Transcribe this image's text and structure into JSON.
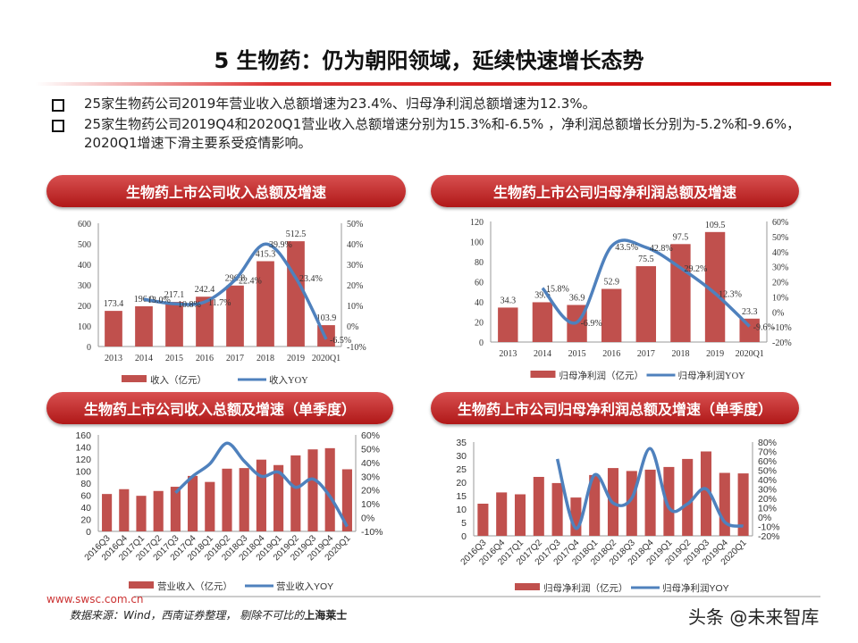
{
  "title": "5 生物药：仍为朝阳领域，延续快速增长态势",
  "bullets": [
    "25家生物药公司2019年营业收入总额增速为23.4%、归母净利润总额增速为12.3%。",
    "25家生物药公司2019Q4和2020Q1营业收入总额增速分别为15.3%和-6.5% ，净利润总额增长分别为-5.2%和-9.6%，2020Q1增速下滑主要系受疫情影响。"
  ],
  "footer": {
    "url": "www.swsc.com.cn",
    "source": "数据来源：Wind，西南证券整理， 剔除不可比的",
    "source_bold": "上海莱士",
    "watermark": "头条 @未来智库"
  },
  "colors": {
    "bar": "#c0504d",
    "line": "#4f81bd",
    "accent": "#c00000"
  },
  "chart_data": [
    {
      "type": "bar+line",
      "title": "生物药上市公司收入总额及增速",
      "categories": [
        "2013",
        "2014",
        "2015",
        "2016",
        "2017",
        "2018",
        "2019",
        "2020Q1"
      ],
      "series": [
        {
          "name": "收入（亿元）",
          "type": "bar",
          "axis": "left",
          "values": [
            173.4,
            196.0,
            217.1,
            242.4,
            296.8,
            415.3,
            512.5,
            103.9
          ],
          "labels": [
            "173.4",
            "196.0",
            "217.1",
            "242.4",
            "296.8",
            "415.3",
            "512.5",
            "103.9"
          ]
        },
        {
          "name": "收入YOY",
          "type": "line",
          "axis": "right",
          "values": [
            null,
            13.0,
            10.8,
            11.7,
            22.4,
            39.9,
            23.4,
            -6.5
          ],
          "labels": [
            "",
            "13.0%",
            "10.8%",
            "11.7%",
            "22.4%",
            "39.9%",
            "23.4%",
            "-6.5%"
          ]
        }
      ],
      "ylim": [
        0,
        600
      ],
      "yticks": [
        "0",
        "100",
        "200",
        "300",
        "400",
        "500",
        "600"
      ],
      "y2lim": [
        -10,
        50
      ],
      "y2ticks": [
        "-10%",
        "0%",
        "10%",
        "20%",
        "30%",
        "40%",
        "50%"
      ],
      "legend": "bottom"
    },
    {
      "type": "bar+line",
      "title": "生物药上市公司归母净利润总额及增速",
      "categories": [
        "2013",
        "2014",
        "2015",
        "2016",
        "2017",
        "2018",
        "2019",
        "2020Q1"
      ],
      "series": [
        {
          "name": "归母净利润（亿元）",
          "type": "bar",
          "axis": "left",
          "values": [
            34.3,
            39.6,
            36.9,
            52.9,
            75.5,
            97.5,
            109.5,
            23.3
          ],
          "labels": [
            "34.3",
            "39.6",
            "36.9",
            "52.9",
            "75.5",
            "97.5",
            "109.5",
            "23.3"
          ]
        },
        {
          "name": "归母净利润YOY",
          "type": "line",
          "axis": "right",
          "values": [
            null,
            15.8,
            -6.9,
            43.5,
            42.8,
            29.2,
            12.3,
            -9.6
          ],
          "labels": [
            "",
            "15.8%",
            "-6.9%",
            "43.5%",
            "42.8%",
            "29.2%",
            "12.3%",
            "-9.6%"
          ]
        }
      ],
      "ylim": [
        0,
        120
      ],
      "yticks": [
        "0",
        "20",
        "40",
        "60",
        "80",
        "100",
        "120"
      ],
      "y2lim": [
        -20,
        60
      ],
      "y2ticks": [
        "-20%",
        "-10%",
        "0%",
        "10%",
        "20%",
        "30%",
        "40%",
        "50%",
        "60%"
      ],
      "legend": "bottom"
    },
    {
      "type": "bar+line",
      "title": "生物药上市公司收入总额及增速（单季度）",
      "categories": [
        "2016Q3",
        "2016Q4",
        "2017Q1",
        "2017Q2",
        "2017Q3",
        "2017Q4",
        "2018Q1",
        "2018Q2",
        "2018Q3",
        "2018Q4",
        "2019Q1",
        "2019Q2",
        "2019Q3",
        "2019Q4",
        "2020Q1"
      ],
      "series": [
        {
          "name": "营业收入（亿元）",
          "type": "bar",
          "axis": "left",
          "values": [
            62,
            70,
            59,
            67,
            74,
            92,
            82,
            104,
            105,
            119,
            110,
            126,
            136,
            138,
            103
          ]
        },
        {
          "name": "营业收入YOY",
          "type": "line",
          "axis": "right",
          "values": [
            null,
            null,
            null,
            null,
            18,
            30,
            39,
            54,
            41,
            30,
            33,
            22,
            28,
            15.3,
            -6.5
          ]
        }
      ],
      "ylim": [
        0,
        160
      ],
      "yticks": [
        "0",
        "20",
        "40",
        "60",
        "80",
        "100",
        "120",
        "140",
        "160"
      ],
      "y2lim": [
        -10,
        60
      ],
      "y2ticks": [
        "-10%",
        "0%",
        "10%",
        "20%",
        "30%",
        "40%",
        "50%",
        "60%"
      ],
      "legend": "bottom"
    },
    {
      "type": "bar+line",
      "title": "生物药上市公司归母净利润总额及增速（单季度）",
      "categories": [
        "2016Q3",
        "2016Q4",
        "2017Q1",
        "2017Q2",
        "2017Q3",
        "2017Q4",
        "2018Q1",
        "2018Q2",
        "2018Q3",
        "2018Q4",
        "2019Q1",
        "2019Q2",
        "2019Q3",
        "2019Q4",
        "2020Q1"
      ],
      "series": [
        {
          "name": "归母净利润（亿元）",
          "type": "bar",
          "axis": "left",
          "values": [
            12,
            16.2,
            15.5,
            22,
            19.7,
            14.3,
            22.7,
            25.3,
            24.2,
            24.7,
            25.7,
            28.7,
            31.5,
            23.5,
            23.3
          ]
        },
        {
          "name": "归母净利润YOY",
          "type": "line",
          "axis": "right",
          "values": [
            null,
            null,
            null,
            null,
            62,
            -12,
            45,
            15,
            20,
            73,
            10,
            14,
            30,
            -5.2,
            -9.6
          ]
        }
      ],
      "ylim": [
        0,
        35
      ],
      "yticks": [
        "0",
        "5",
        "10",
        "15",
        "20",
        "25",
        "30",
        "35"
      ],
      "y2lim": [
        -20,
        80
      ],
      "y2ticks": [
        "-20%",
        "-10%",
        "0%",
        "10%",
        "20%",
        "30%",
        "40%",
        "50%",
        "60%",
        "70%",
        "80%"
      ],
      "legend": "bottom"
    }
  ]
}
